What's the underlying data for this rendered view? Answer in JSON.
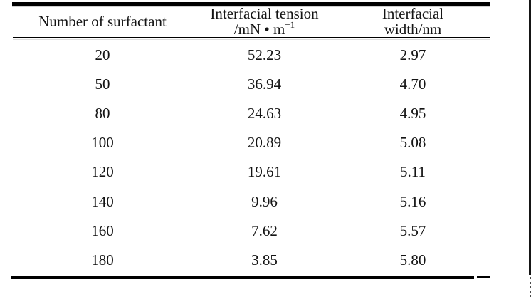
{
  "table": {
    "header": {
      "col1": "Number of surfactant",
      "col2_line1": "Interfacial tension",
      "col2_unit_base": "/mN • m",
      "col2_unit_sup": "−1",
      "col3_line1": "Interfacial",
      "col3_line2": "width/nm"
    },
    "rows": [
      {
        "surfactant": "20",
        "tension": "52.23",
        "width": "2.97"
      },
      {
        "surfactant": "50",
        "tension": "36.94",
        "width": "4.70"
      },
      {
        "surfactant": "80",
        "tension": "24.63",
        "width": "4.95"
      },
      {
        "surfactant": "100",
        "tension": "20.89",
        "width": "5.08"
      },
      {
        "surfactant": "120",
        "tension": "19.61",
        "width": "5.11"
      },
      {
        "surfactant": "140",
        "tension": "9.96",
        "width": "5.16"
      },
      {
        "surfactant": "160",
        "tension": "7.62",
        "width": "5.57"
      },
      {
        "surfactant": "180",
        "tension": "3.85",
        "width": "5.80"
      }
    ]
  },
  "colors": {
    "background": "#ffffff",
    "text": "#141414",
    "rule": "#000000"
  },
  "chart_data": {
    "type": "table",
    "columns": [
      "Number of surfactant",
      "Interfacial tension /mN • m⁻¹",
      "Interfacial width/nm"
    ],
    "rows": [
      [
        20,
        52.23,
        2.97
      ],
      [
        50,
        36.94,
        4.7
      ],
      [
        80,
        24.63,
        4.95
      ],
      [
        100,
        20.89,
        5.08
      ],
      [
        120,
        19.61,
        5.11
      ],
      [
        140,
        9.96,
        5.16
      ],
      [
        160,
        7.62,
        5.57
      ],
      [
        180,
        3.85,
        5.8
      ]
    ]
  }
}
